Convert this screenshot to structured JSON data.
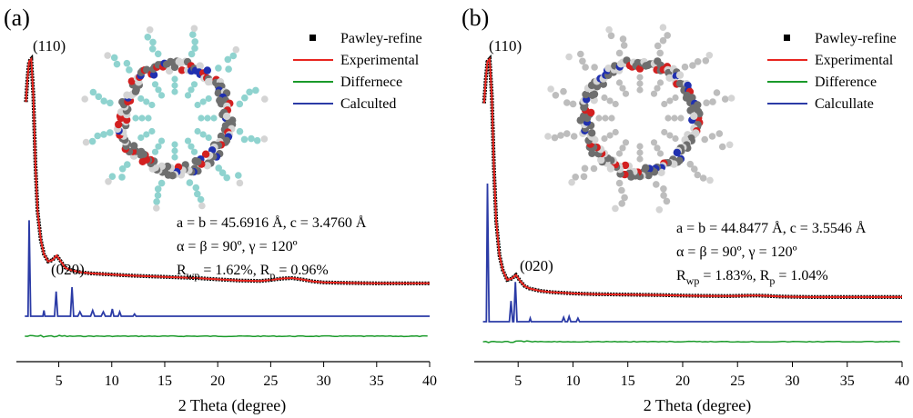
{
  "chart_data": [
    {
      "type": "line",
      "panel_label": "(a)",
      "xlabel": "2 Theta (degree)",
      "xlim": [
        1,
        40
      ],
      "xticks": [
        5,
        10,
        15,
        20,
        25,
        30,
        35,
        40
      ],
      "legend": {
        "placement": "top-right",
        "entries": [
          {
            "label": "Pawley-refine",
            "style": "square",
            "color": "#000000"
          },
          {
            "label": "Experimental",
            "style": "line",
            "color": "#e8251f"
          },
          {
            "label": "Differnece",
            "style": "line",
            "color": "#1a9a2a"
          },
          {
            "label": "Calculted",
            "style": "line",
            "color": "#2b3ba6"
          }
        ]
      },
      "peak_labels": [
        {
          "text": "(110)",
          "x": 2.4
        },
        {
          "text": "(020)",
          "x": 4.8
        }
      ],
      "annotations": {
        "line1": "a = b = 45.6916 Å, c = 3.4760 Å",
        "line2": "α = β = 90º, γ = 120º",
        "rwp_prefix": "R",
        "rwp_sub": "wp",
        "rwp_value": " = 1.62%, R",
        "rp_sub": "p",
        "rp_value": " = 0.96%"
      },
      "series": [
        {
          "name": "Experimental",
          "color": "#e8251f",
          "x": [
            1.9,
            2.05,
            2.2,
            2.4,
            2.6,
            2.8,
            3.0,
            3.3,
            3.6,
            4.0,
            4.4,
            4.8,
            5.2,
            5.6,
            6.0,
            7,
            8,
            10,
            12,
            15,
            18,
            20,
            22,
            24,
            25,
            26,
            27,
            28,
            29,
            30,
            32,
            35,
            38,
            40
          ],
          "y": [
            0.82,
            0.92,
            0.99,
            1.0,
            0.85,
            0.55,
            0.36,
            0.24,
            0.18,
            0.15,
            0.155,
            0.175,
            0.15,
            0.125,
            0.115,
            0.105,
            0.1,
            0.095,
            0.09,
            0.085,
            0.08,
            0.075,
            0.07,
            0.068,
            0.072,
            0.078,
            0.08,
            0.074,
            0.066,
            0.062,
            0.06,
            0.058,
            0.058,
            0.058
          ]
        },
        {
          "name": "Calculted",
          "color": "#2b3ba6",
          "x": [
            1.8,
            2.1,
            2.2,
            2.35,
            2.6,
            3.5,
            3.6,
            3.7,
            4.0,
            4.6,
            4.75,
            4.9,
            5.5,
            6.1,
            6.25,
            6.4,
            6.8,
            7.0,
            7.2,
            8.0,
            8.2,
            8.4,
            9.0,
            9.2,
            9.4,
            9.9,
            10.05,
            10.2,
            10.6,
            10.75,
            10.9,
            12.0,
            12.15,
            12.3,
            13.0,
            40
          ],
          "y": [
            0,
            0,
            0.66,
            0,
            0,
            0,
            0.04,
            0,
            0,
            0,
            0.17,
            0,
            0,
            0,
            0.2,
            0,
            0,
            0.03,
            0,
            0,
            0.04,
            0,
            0,
            0.03,
            0,
            0,
            0.05,
            0,
            0,
            0.03,
            0,
            0,
            0.015,
            0,
            0,
            0
          ]
        },
        {
          "name": "Differnece",
          "color": "#1a9a2a",
          "x": [
            1.8,
            40
          ],
          "y": [
            0,
            0
          ]
        }
      ]
    },
    {
      "type": "line",
      "panel_label": "(b)",
      "xlabel": "2 Theta (degree)",
      "xlim": [
        1,
        40
      ],
      "xticks": [
        5,
        10,
        15,
        20,
        25,
        30,
        35,
        40
      ],
      "legend": {
        "placement": "top-right",
        "entries": [
          {
            "label": "Pawley-refine",
            "style": "square",
            "color": "#000000"
          },
          {
            "label": "Experimental",
            "style": "line",
            "color": "#e8251f"
          },
          {
            "label": "Difference",
            "style": "line",
            "color": "#1a9a2a"
          },
          {
            "label": "Calcullate",
            "style": "line",
            "color": "#2b3ba6"
          }
        ]
      },
      "peak_labels": [
        {
          "text": "(110)",
          "x": 2.4
        },
        {
          "text": "(020)",
          "x": 4.8
        }
      ],
      "annotations": {
        "line1": "a = b = 44.8477 Å, c = 3.5546 Å",
        "line2": "α = β = 90º, γ = 120º",
        "rwp_prefix": "R",
        "rwp_sub": "wp",
        "rwp_value": " = 1.83%, R",
        "rp_sub": "p",
        "rp_value": " = 1.04%"
      },
      "series": [
        {
          "name": "Experimental",
          "color": "#e8251f",
          "x": [
            1.9,
            2.05,
            2.2,
            2.4,
            2.6,
            2.8,
            3.0,
            3.3,
            3.6,
            4.0,
            4.4,
            4.8,
            5.2,
            5.6,
            6.0,
            7,
            8,
            10,
            12,
            15,
            18,
            20,
            22,
            24,
            25,
            26,
            27,
            28,
            29,
            30,
            32,
            35,
            38,
            40
          ],
          "y": [
            0.82,
            0.92,
            0.99,
            1.0,
            0.85,
            0.55,
            0.34,
            0.2,
            0.14,
            0.1,
            0.105,
            0.12,
            0.095,
            0.075,
            0.065,
            0.055,
            0.05,
            0.045,
            0.042,
            0.04,
            0.038,
            0.036,
            0.035,
            0.034,
            0.035,
            0.036,
            0.036,
            0.034,
            0.032,
            0.031,
            0.03,
            0.03,
            0.03,
            0.03
          ]
        },
        {
          "name": "Calcullate",
          "color": "#2b3ba6",
          "x": [
            1.8,
            2.1,
            2.2,
            2.35,
            2.6,
            4.2,
            4.35,
            4.5,
            4.6,
            4.75,
            4.9,
            5.2,
            6.0,
            6.1,
            6.2,
            9.0,
            9.15,
            9.3,
            9.5,
            9.65,
            9.8,
            10.3,
            10.45,
            10.6,
            40
          ],
          "y": [
            0,
            0,
            0.8,
            0,
            0,
            0,
            0.12,
            0,
            0,
            0.23,
            0,
            0,
            0,
            0.02,
            0,
            0,
            0.025,
            0,
            0,
            0.03,
            0,
            0,
            0.02,
            0,
            0
          ]
        },
        {
          "name": "Difference",
          "color": "#1a9a2a",
          "x": [
            1.8,
            40
          ],
          "y": [
            0,
            0
          ]
        }
      ]
    }
  ]
}
